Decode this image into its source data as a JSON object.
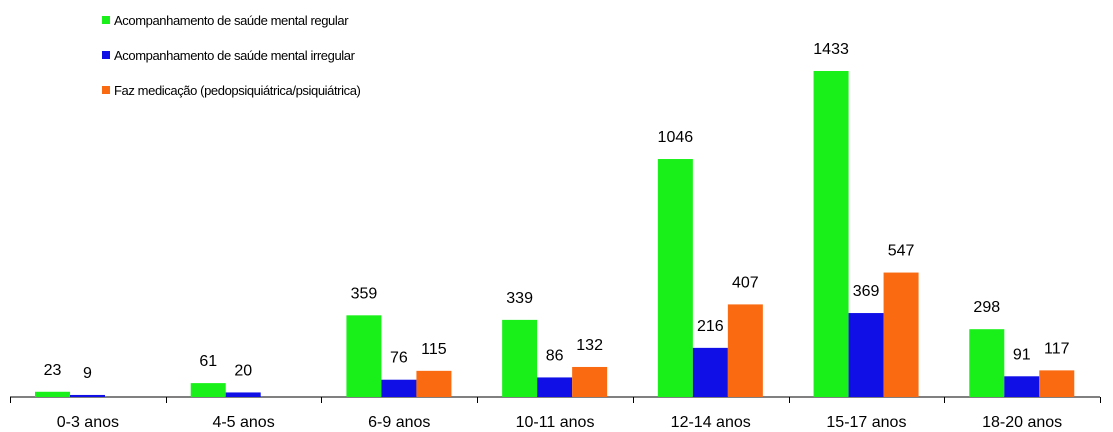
{
  "chart_data": {
    "type": "bar",
    "categories": [
      "0-3 anos",
      "4-5 anos",
      "6-9 anos",
      "10-11 anos",
      "12-14 anos",
      "15-17 anos",
      "18-20 anos"
    ],
    "series": [
      {
        "name": "Acompanhamento de saúde mental regular",
        "color": "#19f019",
        "values": [
          23,
          61,
          359,
          339,
          1046,
          1433,
          298
        ]
      },
      {
        "name": "Acompanhamento de saúde mental irregular",
        "color": "#0f0fe6",
        "values": [
          9,
          20,
          76,
          86,
          216,
          369,
          91
        ]
      },
      {
        "name": "Faz medicação (pedopsiquiátrica/psiquiátrica)",
        "color": "#fa6a10",
        "values": [
          null,
          null,
          115,
          132,
          407,
          547,
          117
        ]
      }
    ],
    "data_labels": [
      [
        "23",
        "61",
        "359",
        "339",
        "1046",
        "1433",
        "298"
      ],
      [
        "9",
        "20",
        "76",
        "86",
        "216",
        "369",
        "91"
      ],
      [
        "",
        "",
        "115",
        "132",
        "407",
        "547",
        "117"
      ]
    ],
    "title": "",
    "xlabel": "",
    "ylabel": "",
    "ylim": [
      0,
      1600
    ],
    "grid": false,
    "legend_position": "top-left"
  }
}
